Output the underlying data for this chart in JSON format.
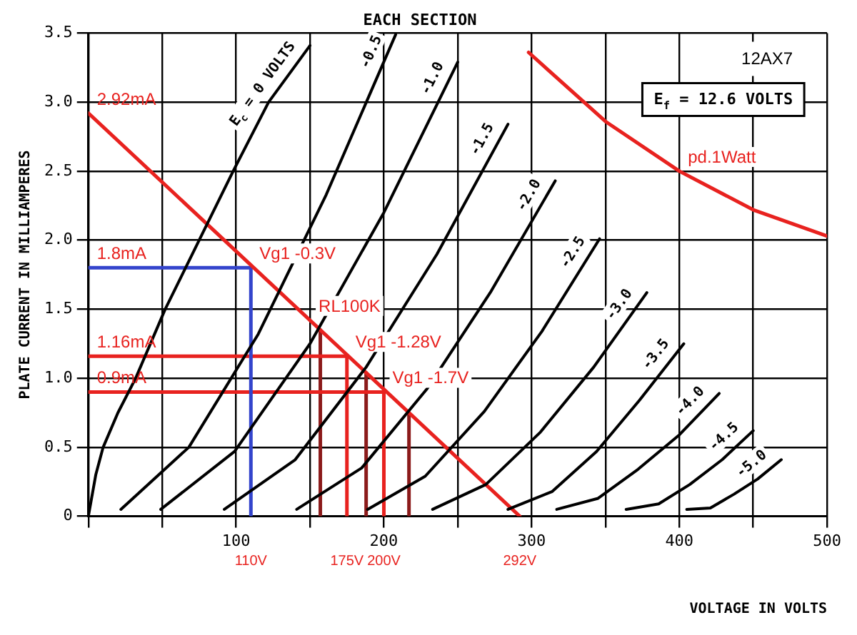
{
  "chart_data": {
    "type": "line",
    "title": "EACH SECTION",
    "xlabel": "VOLTAGE IN VOLTS",
    "ylabel": "PLATE CURRENT IN MILLIAMPERES",
    "xlim": [
      0,
      500
    ],
    "ylim": [
      0,
      3.5
    ],
    "xticks": [
      {
        "value": 0,
        "label": null
      },
      {
        "value": 50,
        "label": null
      },
      100,
      {
        "value": 150,
        "label": null
      },
      200,
      {
        "value": 250,
        "label": null
      },
      300,
      {
        "value": 350,
        "label": null
      },
      400,
      {
        "value": 450,
        "label": null
      },
      500
    ],
    "yticks": [
      0,
      0.5,
      {
        "value": 1,
        "label": "1.0"
      },
      1.5,
      {
        "value": 2,
        "label": "2.0"
      },
      2.5,
      {
        "value": 3,
        "label": "3.0"
      },
      3.5
    ],
    "grid": true,
    "legend": false,
    "marker": "none",
    "line_style": "solid",
    "series": [
      {
        "name": "E$_{c}$ = 0 VOLTS",
        "color": "#000000",
        "x": [
          0,
          5,
          10,
          20,
          32,
          52,
          75,
          98,
          122,
          150
        ],
        "values": [
          0,
          0.3,
          0.5,
          0.75,
          1.0,
          1.5,
          2.0,
          2.5,
          3.0,
          3.41
        ]
      },
      {
        "name": "-0.5",
        "color": "#000000",
        "x": [
          22,
          68,
          115,
          161,
          208
        ],
        "values": [
          0.05,
          0.5,
          1.32,
          2.33,
          3.49
        ]
      },
      {
        "name": "-1.0",
        "color": "#000000",
        "x": [
          49,
          99,
          150,
          200,
          250
        ],
        "values": [
          0.05,
          0.47,
          1.25,
          2.2,
          3.29
        ]
      },
      {
        "name": "-1.5",
        "color": "#000000",
        "x": [
          92,
          140,
          188,
          236,
          284
        ],
        "values": [
          0.05,
          0.41,
          1.08,
          1.9,
          2.84
        ]
      },
      {
        "name": "-2.0",
        "color": "#000000",
        "x": [
          141,
          185,
          229,
          272,
          316
        ],
        "values": [
          0.05,
          0.35,
          0.92,
          1.62,
          2.43
        ]
      },
      {
        "name": "-2.5",
        "color": "#000000",
        "x": [
          189,
          228,
          268,
          307,
          346
        ],
        "values": [
          0.05,
          0.29,
          0.76,
          1.34,
          2.01
        ]
      },
      {
        "name": "-3.0",
        "color": "#000000",
        "x": [
          233,
          269,
          306,
          342,
          378
        ],
        "values": [
          0.05,
          0.23,
          0.61,
          1.08,
          1.62
        ]
      },
      {
        "name": "-3.5",
        "color": "#000000",
        "x": [
          284,
          314,
          344,
          373,
          403
        ],
        "values": [
          0.05,
          0.18,
          0.47,
          0.84,
          1.25
        ]
      },
      {
        "name": "-4.0",
        "color": "#000000",
        "x": [
          317,
          345,
          372,
          400,
          427
        ],
        "values": [
          0.05,
          0.13,
          0.34,
          0.59,
          0.89
        ]
      },
      {
        "name": "-4.5",
        "color": "#000000",
        "x": [
          364,
          386,
          407,
          429,
          450
        ],
        "values": [
          0.05,
          0.09,
          0.23,
          0.41,
          0.62
        ]
      },
      {
        "name": "-5.0",
        "color": "#000000",
        "x": [
          405,
          421,
          437,
          453,
          469
        ],
        "values": [
          0.05,
          0.06,
          0.16,
          0.27,
          0.41
        ]
      },
      {
        "color": "#e8221f",
        "x": [
          0,
          292
        ],
        "values": [
          2.92,
          0
        ]
      },
      {
        "color": "#e8221f",
        "x": [
          298,
          350,
          400,
          450,
          500
        ],
        "values": [
          3.36,
          2.86,
          2.5,
          2.22,
          2.03
        ]
      },
      {
        "color": "#3344cc",
        "x": [
          0,
          110,
          110
        ],
        "values": [
          1.8,
          1.8,
          0
        ]
      },
      {
        "color": "#e8221f",
        "x": [
          0,
          175,
          175
        ],
        "values": [
          1.16,
          1.16,
          0
        ]
      },
      {
        "color": "#e8221f",
        "x": [
          0,
          200,
          200
        ],
        "values": [
          0.9,
          0.9,
          0
        ]
      },
      {
        "color": "#8b1a1a",
        "x": [
          157,
          157
        ],
        "values": [
          1.35,
          0
        ]
      },
      {
        "color": "#8b1a1a",
        "x": [
          188,
          188
        ],
        "values": [
          1.04,
          0
        ]
      },
      {
        "color": "#8b1a1a",
        "x": [
          217,
          217
        ],
        "values": [
          0.75,
          0
        ]
      }
    ],
    "annotations": [
      "12AX7",
      "E$_{f}$ = 12.6 VOLTS",
      {
        "text": "2.92mA",
        "x": 0,
        "y": 2.92
      },
      {
        "text": "1.8mA",
        "x": 0,
        "y": 1.8
      },
      {
        "text": "1.16mA",
        "x": 0,
        "y": 1.16
      },
      {
        "text": "0.9mA",
        "x": 0,
        "y": 0.9
      },
      {
        "text": "Vg1 -0.3V",
        "x": 110,
        "y": 1.8
      },
      {
        "text": "RL100K",
        "x": 150,
        "y": 1.42
      },
      {
        "text": "Vg1 -1.28V",
        "x": 175,
        "y": 1.16
      },
      {
        "text": "Vg1 -1.7V",
        "x": 200,
        "y": 0.9
      },
      {
        "text": "pd.1Watt",
        "x": 400,
        "y": 2.5
      },
      {
        "text": "110V",
        "x": 110,
        "y": 0
      },
      {
        "text": "175V",
        "x": 175,
        "y": 0
      },
      {
        "text": "200V",
        "x": 200,
        "y": 0
      },
      {
        "text": "292V",
        "x": 292,
        "y": 0
      }
    ]
  }
}
